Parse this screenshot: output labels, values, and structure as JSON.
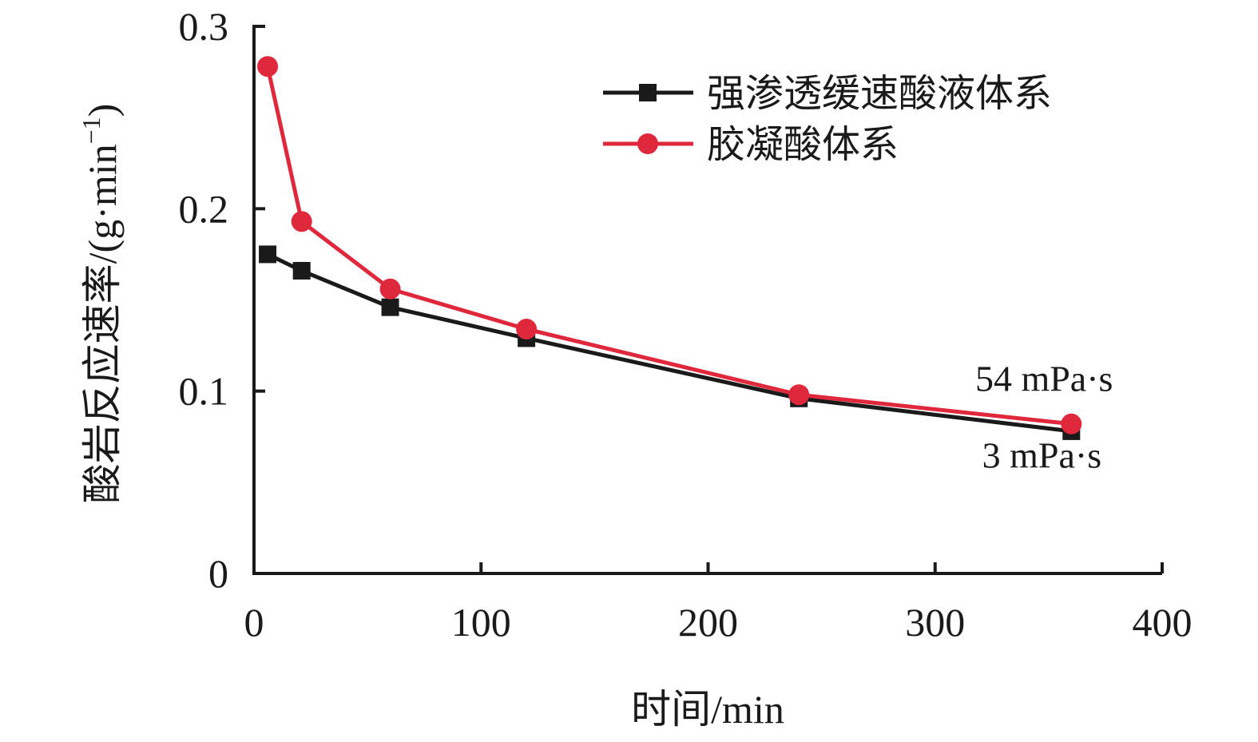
{
  "chart_data": {
    "type": "line",
    "xlabel": "时间/min",
    "ylabel": "酸岩反应速率/(g·min",
    "ylabel_sup": "−1",
    "ylabel_close": ")",
    "xlim": [
      0,
      400
    ],
    "ylim": [
      0,
      0.3
    ],
    "x_ticks": [
      0,
      100,
      200,
      300,
      400
    ],
    "x_tick_labels": [
      "0",
      "100",
      "200",
      "300",
      "400"
    ],
    "y_ticks": [
      0,
      0.1,
      0.2,
      0.3
    ],
    "y_tick_labels": [
      "0",
      "0.1",
      "0.2",
      "0.3"
    ],
    "grid": false,
    "legend_position": "top-right",
    "series": [
      {
        "name": "强渗透缓速酸液体系",
        "color": "#1a1a1a",
        "marker": "square",
        "x": [
          6,
          21,
          60,
          120,
          240,
          360
        ],
        "y": [
          0.175,
          0.166,
          0.146,
          0.129,
          0.096,
          0.078
        ]
      },
      {
        "name": "胶凝酸体系",
        "color": "#e0283c",
        "marker": "circle",
        "x": [
          6,
          21,
          60,
          120,
          240,
          360
        ],
        "y": [
          0.278,
          0.193,
          0.156,
          0.134,
          0.098,
          0.082
        ]
      }
    ],
    "annotations": [
      {
        "text": "54 mPa·s",
        "x": 348,
        "y": 0.1
      },
      {
        "text": "3 mPa·s",
        "x": 347,
        "y": 0.058
      }
    ]
  }
}
